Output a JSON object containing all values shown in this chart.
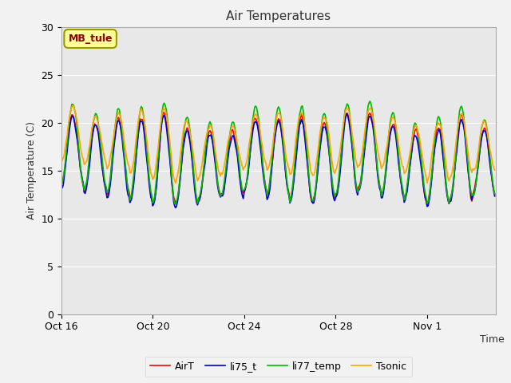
{
  "title": "Air Temperatures",
  "ylabel": "Air Temperature (C)",
  "xlabel": "Time",
  "ylim": [
    0,
    30
  ],
  "yticks": [
    0,
    5,
    10,
    15,
    20,
    25,
    30
  ],
  "annotation_text": "MB_tule",
  "annotation_color": "#8B0000",
  "annotation_bg": "#FFFF99",
  "annotation_edge": "#999900",
  "bg_color": "#E8E8E8",
  "legend": [
    "AirT",
    "li75_t",
    "li77_temp",
    "Tsonic"
  ],
  "line_colors": [
    "#FF0000",
    "#0000CC",
    "#00BB00",
    "#FFA500"
  ],
  "xtick_labels": [
    "Oct 16",
    "Oct 20",
    "Oct 24",
    "Oct 28",
    "Nov 1"
  ],
  "xtick_positions": [
    0,
    4,
    8,
    12,
    16
  ],
  "num_days": 19,
  "hours_per_day": 24,
  "fig_facecolor": "#F2F2F2"
}
